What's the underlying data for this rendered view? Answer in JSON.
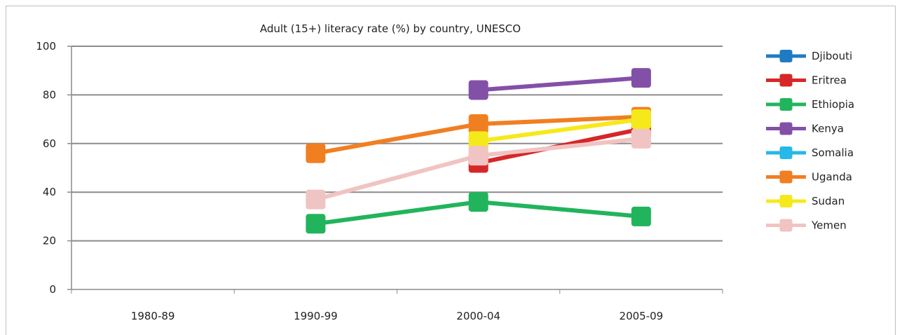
{
  "chart_data": {
    "type": "line",
    "title": "Adult (15+) literacy rate (%) by country, UNESCO",
    "xlabel": "",
    "ylabel": "",
    "categories": [
      "1980-89",
      "1990-99",
      "2000-04",
      "2005-09"
    ],
    "ylim": [
      0,
      100
    ],
    "yticks": [
      0,
      20,
      40,
      60,
      80,
      100
    ],
    "grid": true,
    "legend_position": "right",
    "series": [
      {
        "name": "Djibouti",
        "color": "#1f7bc1",
        "values": [
          null,
          null,
          null,
          null
        ]
      },
      {
        "name": "Eritrea",
        "color": "#d62728",
        "values": [
          null,
          null,
          52,
          66
        ]
      },
      {
        "name": "Ethiopia",
        "color": "#22b45c",
        "values": [
          null,
          27,
          36,
          30
        ]
      },
      {
        "name": "Kenya",
        "color": "#8350a8",
        "values": [
          null,
          null,
          82,
          87
        ]
      },
      {
        "name": "Somalia",
        "color": "#26b8e8",
        "values": [
          null,
          null,
          null,
          null
        ]
      },
      {
        "name": "Uganda",
        "color": "#f07f22",
        "values": [
          null,
          56,
          68,
          71
        ]
      },
      {
        "name": "Sudan",
        "color": "#f5e91c",
        "values": [
          null,
          null,
          61,
          70
        ]
      },
      {
        "name": "Yemen",
        "color": "#f0c4c2",
        "values": [
          null,
          37,
          55,
          62
        ]
      }
    ]
  }
}
